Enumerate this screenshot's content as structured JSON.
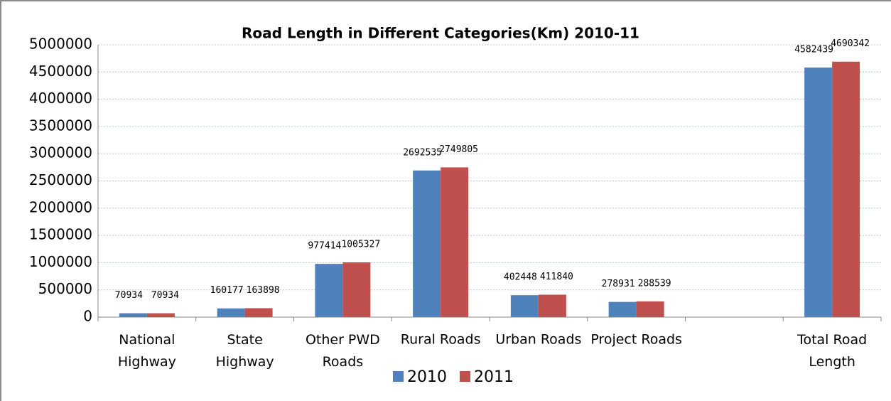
{
  "chart_data": {
    "type": "bar",
    "title": "Road Length in Different Categories(Km) 2010-11",
    "categories": [
      "National Highway",
      "State Highway",
      "Other PWD Roads",
      "Rural Roads",
      "Urban Roads",
      "Project Roads",
      null,
      "Total Road Length"
    ],
    "series": [
      {
        "name": "2010",
        "color": "#4f81bd",
        "values": [
          70934,
          160177,
          977414,
          2692535,
          402448,
          278931,
          null,
          4582439
        ]
      },
      {
        "name": "2011",
        "color": "#c0504d",
        "values": [
          70934,
          163898,
          1005327,
          2749805,
          411840,
          288539,
          null,
          4690342
        ]
      }
    ],
    "ylim": [
      0,
      5000000
    ],
    "yticks": [
      0,
      500000,
      1000000,
      1500000,
      2000000,
      2500000,
      3000000,
      3500000,
      4000000,
      4500000,
      5000000
    ],
    "grid": true,
    "legend": "bottom"
  }
}
